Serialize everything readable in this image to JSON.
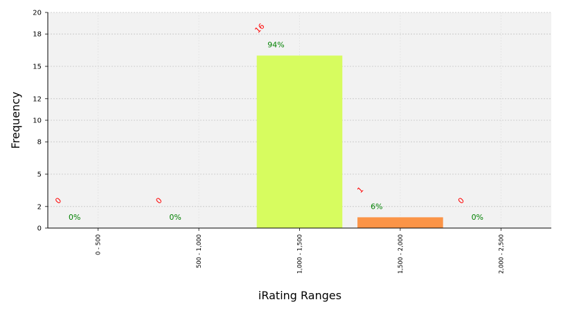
{
  "chart_data": {
    "type": "bar",
    "title": "",
    "xlabel": "iRating Ranges",
    "ylabel": "Frequency",
    "categories": [
      "0 - 500",
      "500 - 1,000",
      "1,000 - 1,500",
      "1,500 - 2,000",
      "2,000 - 2,500"
    ],
    "values": [
      0,
      0,
      16,
      1,
      0
    ],
    "count_labels": [
      "0",
      "0",
      "16",
      "1",
      "0"
    ],
    "percent_labels": [
      "0%",
      "0%",
      "94%",
      "6%",
      "0%"
    ],
    "bar_colors": [
      "#d7fc5f",
      "#d7fc5f",
      "#d7fc5f",
      "#fb9447",
      "#d7fc5f"
    ],
    "count_label_color": "#ff0000",
    "percent_label_color": "#008000",
    "plot_background": "#f2f2f2",
    "grid": true,
    "ylim": [
      0,
      20
    ],
    "yticks": [
      0,
      2,
      5,
      8,
      10,
      12,
      15,
      18,
      20
    ],
    "ytick_labels": [
      "0",
      "2",
      "5",
      "8",
      "10",
      "12",
      "15",
      "18",
      "20"
    ]
  }
}
